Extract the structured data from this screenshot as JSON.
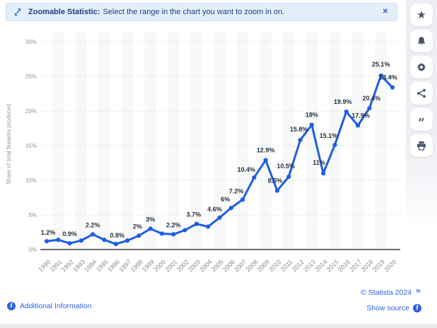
{
  "banner": {
    "icon": "zoom-resize-icon",
    "title_bold": "Zoomable Statistic:",
    "message": "Select the range in the chart you want to zoom in on.",
    "close_glyph": "✕"
  },
  "sidebar": {
    "icons": [
      "star-icon",
      "bell-icon",
      "gear-icon",
      "share-icon",
      "quote-icon",
      "print-icon"
    ]
  },
  "chart_data": {
    "type": "line",
    "ylabel": "Share of total firearms produced",
    "x": [
      1990,
      1991,
      1992,
      1993,
      1994,
      1995,
      1996,
      1997,
      1998,
      1999,
      2000,
      2001,
      2002,
      2003,
      2004,
      2005,
      2006,
      2007,
      2008,
      2009,
      2010,
      2011,
      2012,
      2013,
      2014,
      2015,
      2016,
      2017,
      2018,
      2019,
      2020
    ],
    "values": [
      1.2,
      1.4,
      0.9,
      1.3,
      2.2,
      1.4,
      0.8,
      1.3,
      2.0,
      3.0,
      2.3,
      2.2,
      2.8,
      3.7,
      3.3,
      4.6,
      6.0,
      7.2,
      10.4,
      12.9,
      8.5,
      10.5,
      15.8,
      18.0,
      11.0,
      15.1,
      19.9,
      17.9,
      20.4,
      25.1,
      23.4
    ],
    "point_labels": [
      "1.2%",
      "",
      "0.9%",
      "",
      "2.2%",
      "",
      "0.8%",
      "",
      "2%",
      "3%",
      "",
      "2.2%",
      "",
      "3.7%",
      "",
      "4.6%",
      "6%",
      "7.2%",
      "10.4%",
      "12.9%",
      "8.5%",
      "10.5%",
      "15.8%",
      "18%",
      "11%",
      "15.1%",
      "19.9%",
      "17.9%",
      "20.4%",
      "25.1%",
      "23.4%"
    ],
    "yticks": [
      "0%",
      "5%",
      "10%",
      "15%",
      "20%",
      "25%",
      "30%"
    ],
    "ylim": [
      0,
      30
    ],
    "grid": "dotted horizontal, alternating vertical bands",
    "legend": "none",
    "line_color": "#1d5ee3",
    "label_color": "#26303d",
    "axis_text_color": "#8d939c"
  },
  "footer": {
    "additional_information": "Additional Information",
    "copyright": "© Statista 2024",
    "show_source": "Show source",
    "flag_glyph": "⚑"
  }
}
